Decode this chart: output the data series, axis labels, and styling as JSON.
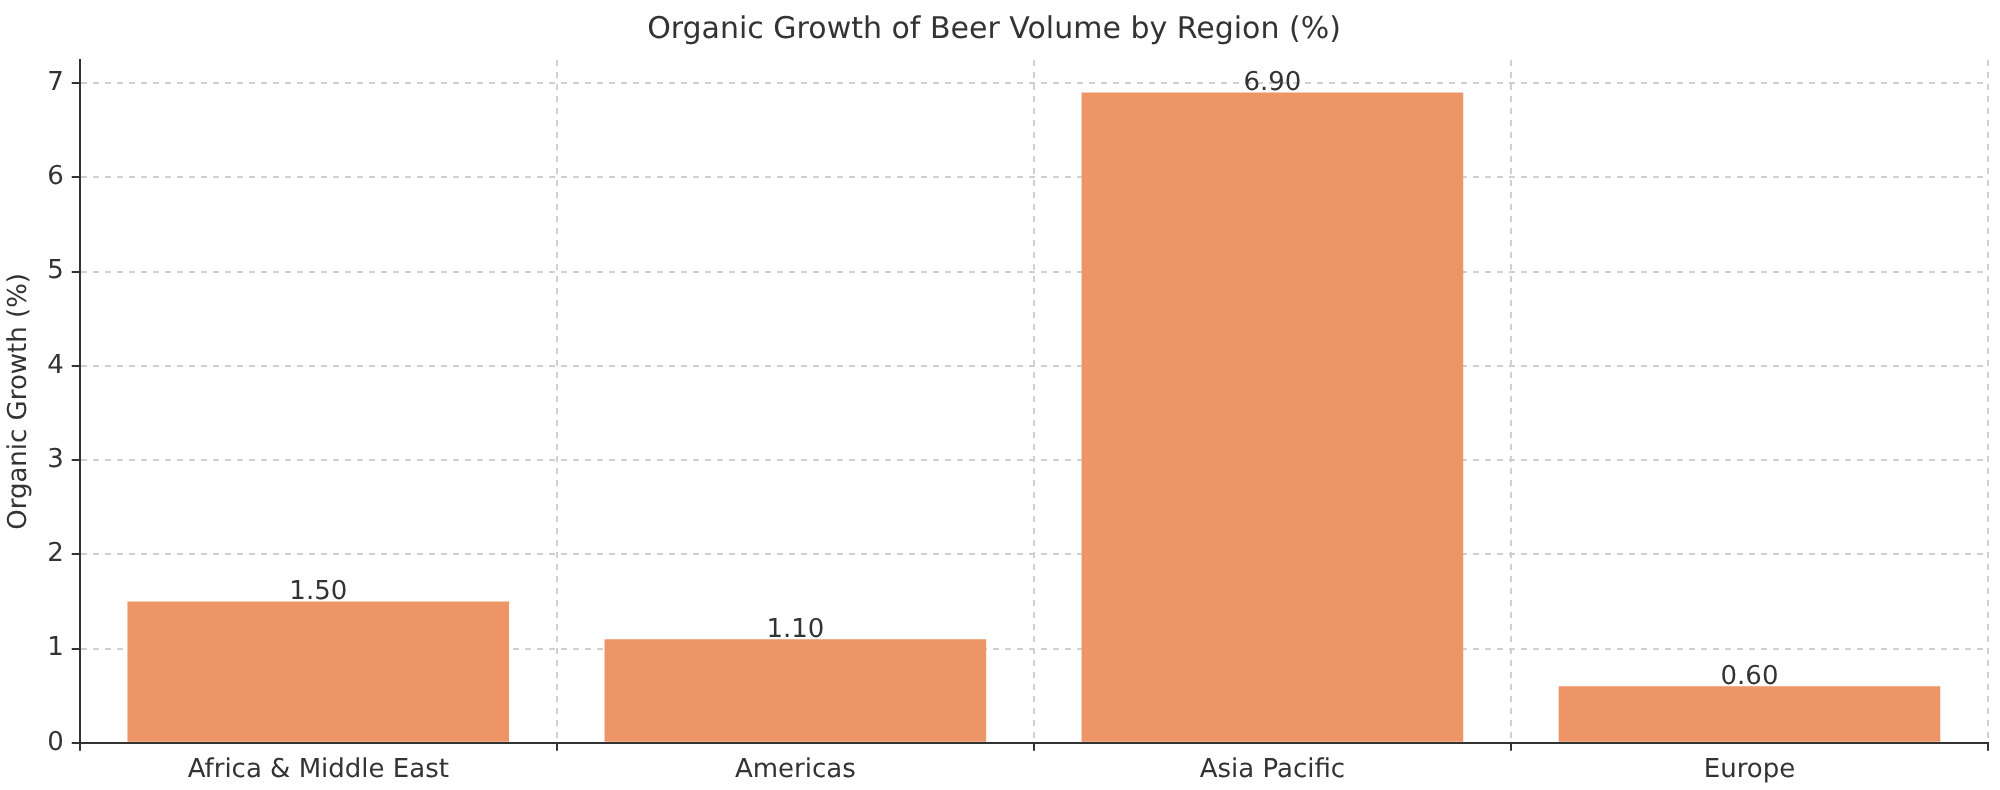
{
  "chart_data": {
    "type": "bar",
    "title": "Organic Growth of Beer Volume by Region (%)",
    "ylabel": "Organic Growth (%)",
    "categories": [
      "Africa & Middle East",
      "Americas",
      "Asia Pacific",
      "Europe"
    ],
    "values": [
      1.5,
      1.1,
      6.9,
      0.6
    ],
    "value_labels": [
      "1.50",
      "1.10",
      "6.90",
      "0.60"
    ],
    "color": "#ee9568",
    "ylim": [
      0,
      7.245
    ],
    "yticks": [
      0,
      1,
      2,
      3,
      4,
      5,
      6,
      7
    ],
    "grid": true
  }
}
